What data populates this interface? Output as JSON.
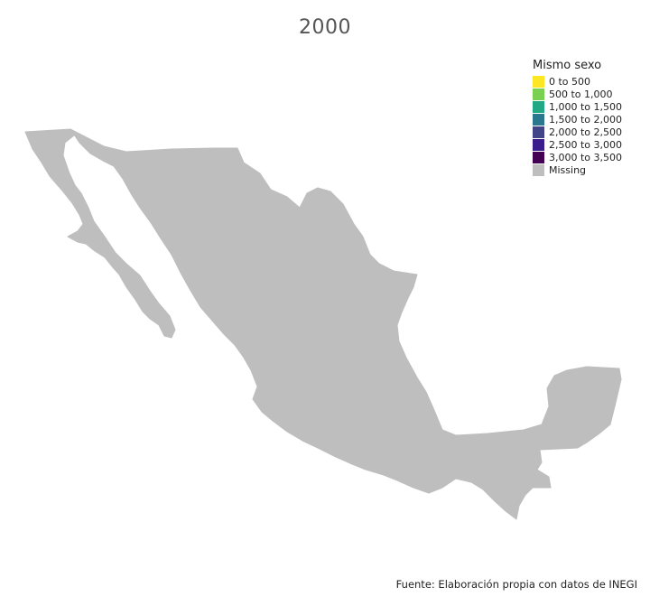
{
  "title": "2000",
  "legend": {
    "title": "Mismo sexo",
    "items": [
      {
        "label": "0 to 500",
        "color": "#FDE725"
      },
      {
        "label": "500 to 1,000",
        "color": "#7AD151"
      },
      {
        "label": "1,000 to 1,500",
        "color": "#22A884"
      },
      {
        "label": "1,500 to 2,000",
        "color": "#2A788E"
      },
      {
        "label": "2,000 to 2,500",
        "color": "#414487"
      },
      {
        "label": "2,500 to 3,000",
        "color": "#3B1C8C"
      },
      {
        "label": "3,000 to 3,500",
        "color": "#440154"
      },
      {
        "label": "Missing",
        "color": "#BEBEBE"
      }
    ]
  },
  "map": {
    "region_color": "#BEBEBE",
    "status": "Missing"
  },
  "caption": "Fuente: Elaboración propia con datos de INEGI"
}
